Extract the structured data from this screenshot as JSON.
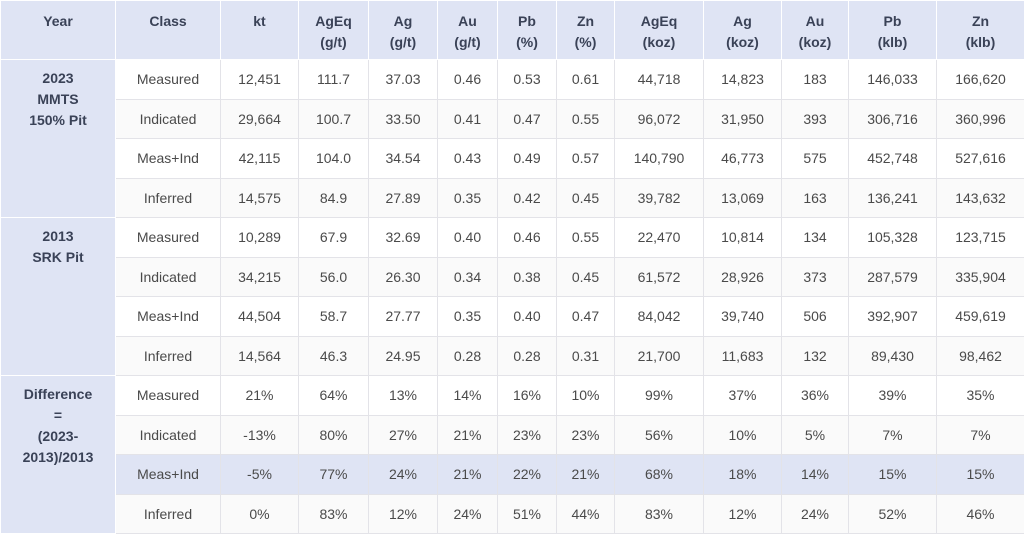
{
  "table": {
    "header": [
      [
        "Year"
      ],
      [
        "Class"
      ],
      [
        "kt"
      ],
      [
        "AgEq",
        "(g/t)"
      ],
      [
        "Ag",
        "(g/t)"
      ],
      [
        "Au",
        "(g/t)"
      ],
      [
        "Pb",
        "(%)"
      ],
      [
        "Zn",
        "(%)"
      ],
      [
        "AgEq",
        "(koz)"
      ],
      [
        "Ag",
        "(koz)"
      ],
      [
        "Au",
        "(koz)"
      ],
      [
        "Pb",
        "(klb)"
      ],
      [
        "Zn",
        "(klb)"
      ]
    ],
    "groups": [
      {
        "year": [
          "2023",
          "MMTS",
          "150% Pit"
        ],
        "rows": [
          [
            "Measured",
            "12,451",
            "111.7",
            "37.03",
            "0.46",
            "0.53",
            "0.61",
            "44,718",
            "14,823",
            "183",
            "146,033",
            "166,620"
          ],
          [
            "Indicated",
            "29,664",
            "100.7",
            "33.50",
            "0.41",
            "0.47",
            "0.55",
            "96,072",
            "31,950",
            "393",
            "306,716",
            "360,996"
          ],
          [
            "Meas+Ind",
            "42,115",
            "104.0",
            "34.54",
            "0.43",
            "0.49",
            "0.57",
            "140,790",
            "46,773",
            "575",
            "452,748",
            "527,616"
          ],
          [
            "Inferred",
            "14,575",
            "84.9",
            "27.89",
            "0.35",
            "0.42",
            "0.45",
            "39,782",
            "13,069",
            "163",
            "136,241",
            "143,632"
          ]
        ]
      },
      {
        "year": [
          "2013",
          "SRK Pit"
        ],
        "rows": [
          [
            "Measured",
            "10,289",
            "67.9",
            "32.69",
            "0.40",
            "0.46",
            "0.55",
            "22,470",
            "10,814",
            "134",
            "105,328",
            "123,715"
          ],
          [
            "Indicated",
            "34,215",
            "56.0",
            "26.30",
            "0.34",
            "0.38",
            "0.45",
            "61,572",
            "28,926",
            "373",
            "287,579",
            "335,904"
          ],
          [
            "Meas+Ind",
            "44,504",
            "58.7",
            "27.77",
            "0.35",
            "0.40",
            "0.47",
            "84,042",
            "39,740",
            "506",
            "392,907",
            "459,619"
          ],
          [
            "Inferred",
            "14,564",
            "46.3",
            "24.95",
            "0.28",
            "0.28",
            "0.31",
            "21,700",
            "11,683",
            "132",
            "89,430",
            "98,462"
          ]
        ]
      },
      {
        "year": [
          "Difference",
          "=",
          "(2023-",
          "2013)/2013"
        ],
        "rows": [
          [
            "Measured",
            "21%",
            "64%",
            "13%",
            "14%",
            "16%",
            "10%",
            "99%",
            "37%",
            "36%",
            "39%",
            "35%"
          ],
          [
            "Indicated",
            "-13%",
            "80%",
            "27%",
            "21%",
            "23%",
            "23%",
            "56%",
            "10%",
            "5%",
            "7%",
            "7%"
          ],
          [
            "Meas+Ind",
            "-5%",
            "77%",
            "24%",
            "21%",
            "22%",
            "21%",
            "68%",
            "18%",
            "14%",
            "15%",
            "15%"
          ],
          [
            "Inferred",
            "0%",
            "83%",
            "12%",
            "24%",
            "51%",
            "44%",
            "83%",
            "12%",
            "24%",
            "52%",
            "46%"
          ]
        ]
      }
    ]
  }
}
